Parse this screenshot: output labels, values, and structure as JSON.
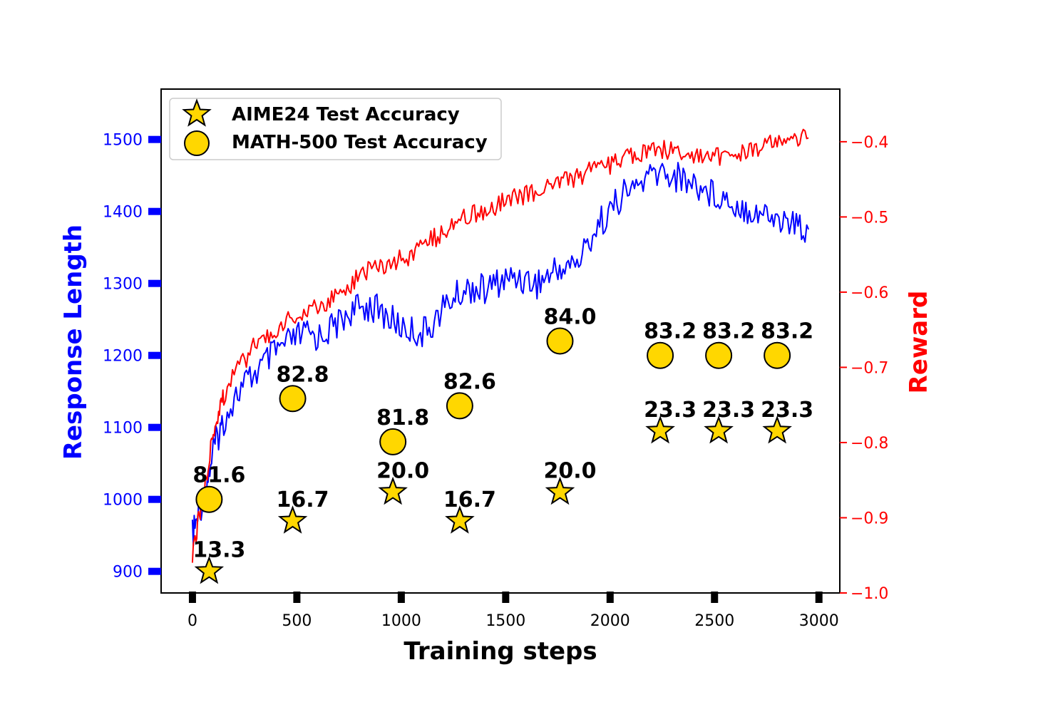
{
  "chart_data": {
    "type": "line",
    "title": "",
    "xlabel": "Training steps",
    "ylabel_left": "Response Length",
    "ylabel_right": "Reward",
    "xlim": [
      -150,
      3100
    ],
    "ylim_left": [
      870,
      1570
    ],
    "ylim_right": [
      -1.0,
      -0.33
    ],
    "x_ticks": [
      "0",
      "500",
      "1000",
      "1500",
      "2000",
      "2500",
      "3000"
    ],
    "y_left_ticks": [
      "900",
      "1000",
      "1100",
      "1200",
      "1300",
      "1400",
      "1500"
    ],
    "y_right_ticks": [
      "−1.0",
      "−0.9",
      "−0.8",
      "−0.7",
      "−0.6",
      "−0.5",
      "−0.4"
    ],
    "colors": {
      "response_length": "#0000ff",
      "reward": "#ff0000",
      "marker_fill": "#ffd700",
      "marker_edge": "#000000"
    },
    "series": [
      {
        "name": "Response Length",
        "axis": "left",
        "color": "#0000ff",
        "x": [
          0,
          25,
          50,
          75,
          100,
          125,
          150,
          200,
          250,
          300,
          350,
          400,
          450,
          500,
          550,
          600,
          650,
          700,
          750,
          800,
          850,
          900,
          950,
          1000,
          1050,
          1100,
          1150,
          1200,
          1250,
          1300,
          1350,
          1400,
          1450,
          1500,
          1550,
          1600,
          1650,
          1700,
          1750,
          1800,
          1850,
          1900,
          1950,
          2000,
          2050,
          2100,
          2150,
          2200,
          2250,
          2300,
          2350,
          2400,
          2450,
          2500,
          2550,
          2600,
          2650,
          2700,
          2750,
          2800,
          2850,
          2900,
          2950
        ],
        "values": [
          950,
          975,
          1000,
          1030,
          1070,
          1090,
          1110,
          1140,
          1160,
          1175,
          1190,
          1205,
          1215,
          1225,
          1230,
          1225,
          1235,
          1245,
          1260,
          1265,
          1270,
          1260,
          1250,
          1240,
          1235,
          1230,
          1245,
          1265,
          1280,
          1290,
          1295,
          1290,
          1300,
          1305,
          1310,
          1305,
          1300,
          1310,
          1320,
          1325,
          1330,
          1360,
          1385,
          1400,
          1420,
          1430,
          1440,
          1450,
          1455,
          1450,
          1445,
          1440,
          1430,
          1425,
          1420,
          1410,
          1405,
          1400,
          1395,
          1390,
          1385,
          1380,
          1375
        ]
      },
      {
        "name": "Reward",
        "axis": "right",
        "color": "#ff0000",
        "x": [
          0,
          25,
          50,
          75,
          100,
          125,
          150,
          200,
          250,
          300,
          350,
          400,
          450,
          500,
          550,
          600,
          650,
          700,
          750,
          800,
          850,
          900,
          950,
          1000,
          1050,
          1100,
          1150,
          1200,
          1250,
          1300,
          1350,
          1400,
          1450,
          1500,
          1550,
          1600,
          1650,
          1700,
          1750,
          1800,
          1850,
          1900,
          1950,
          2000,
          2050,
          2100,
          2150,
          2200,
          2250,
          2300,
          2350,
          2400,
          2450,
          2500,
          2550,
          2600,
          2650,
          2700,
          2750,
          2800,
          2850,
          2900,
          2950
        ],
        "values": [
          -0.95,
          -0.91,
          -0.87,
          -0.83,
          -0.79,
          -0.76,
          -0.74,
          -0.71,
          -0.69,
          -0.67,
          -0.66,
          -0.65,
          -0.64,
          -0.635,
          -0.63,
          -0.62,
          -0.61,
          -0.6,
          -0.59,
          -0.58,
          -0.57,
          -0.565,
          -0.56,
          -0.555,
          -0.55,
          -0.54,
          -0.53,
          -0.52,
          -0.51,
          -0.5,
          -0.495,
          -0.49,
          -0.485,
          -0.48,
          -0.475,
          -0.47,
          -0.465,
          -0.46,
          -0.455,
          -0.45,
          -0.445,
          -0.44,
          -0.435,
          -0.43,
          -0.425,
          -0.42,
          -0.415,
          -0.41,
          -0.41,
          -0.41,
          -0.415,
          -0.42,
          -0.42,
          -0.42,
          -0.42,
          -0.415,
          -0.41,
          -0.41,
          -0.405,
          -0.4,
          -0.4,
          -0.395,
          -0.395
        ]
      }
    ],
    "markers": [
      {
        "name": "AIME24 Test Accuracy",
        "marker": "star",
        "axis": "left",
        "points": [
          {
            "x": 80,
            "y": 900,
            "label": "13.3"
          },
          {
            "x": 480,
            "y": 970,
            "label": "16.7"
          },
          {
            "x": 960,
            "y": 1010,
            "label": "20.0"
          },
          {
            "x": 1280,
            "y": 970,
            "label": "16.7"
          },
          {
            "x": 1760,
            "y": 1010,
            "label": "20.0"
          },
          {
            "x": 2240,
            "y": 1095,
            "label": "23.3"
          },
          {
            "x": 2520,
            "y": 1095,
            "label": "23.3"
          },
          {
            "x": 2800,
            "y": 1095,
            "label": "23.3"
          }
        ]
      },
      {
        "name": "MATH-500 Test Accuracy",
        "marker": "circle",
        "axis": "left",
        "points": [
          {
            "x": 80,
            "y": 1000,
            "label": "81.6"
          },
          {
            "x": 480,
            "y": 1140,
            "label": "82.8"
          },
          {
            "x": 960,
            "y": 1080,
            "label": "81.8"
          },
          {
            "x": 1280,
            "y": 1130,
            "label": "82.6"
          },
          {
            "x": 1760,
            "y": 1220,
            "label": "84.0"
          },
          {
            "x": 2240,
            "y": 1200,
            "label": "83.2"
          },
          {
            "x": 2520,
            "y": 1200,
            "label": "83.2"
          },
          {
            "x": 2800,
            "y": 1200,
            "label": "83.2"
          }
        ]
      }
    ],
    "legend": {
      "position": "top-left",
      "entries": [
        "AIME24 Test Accuracy",
        "MATH-500 Test Accuracy"
      ]
    }
  }
}
